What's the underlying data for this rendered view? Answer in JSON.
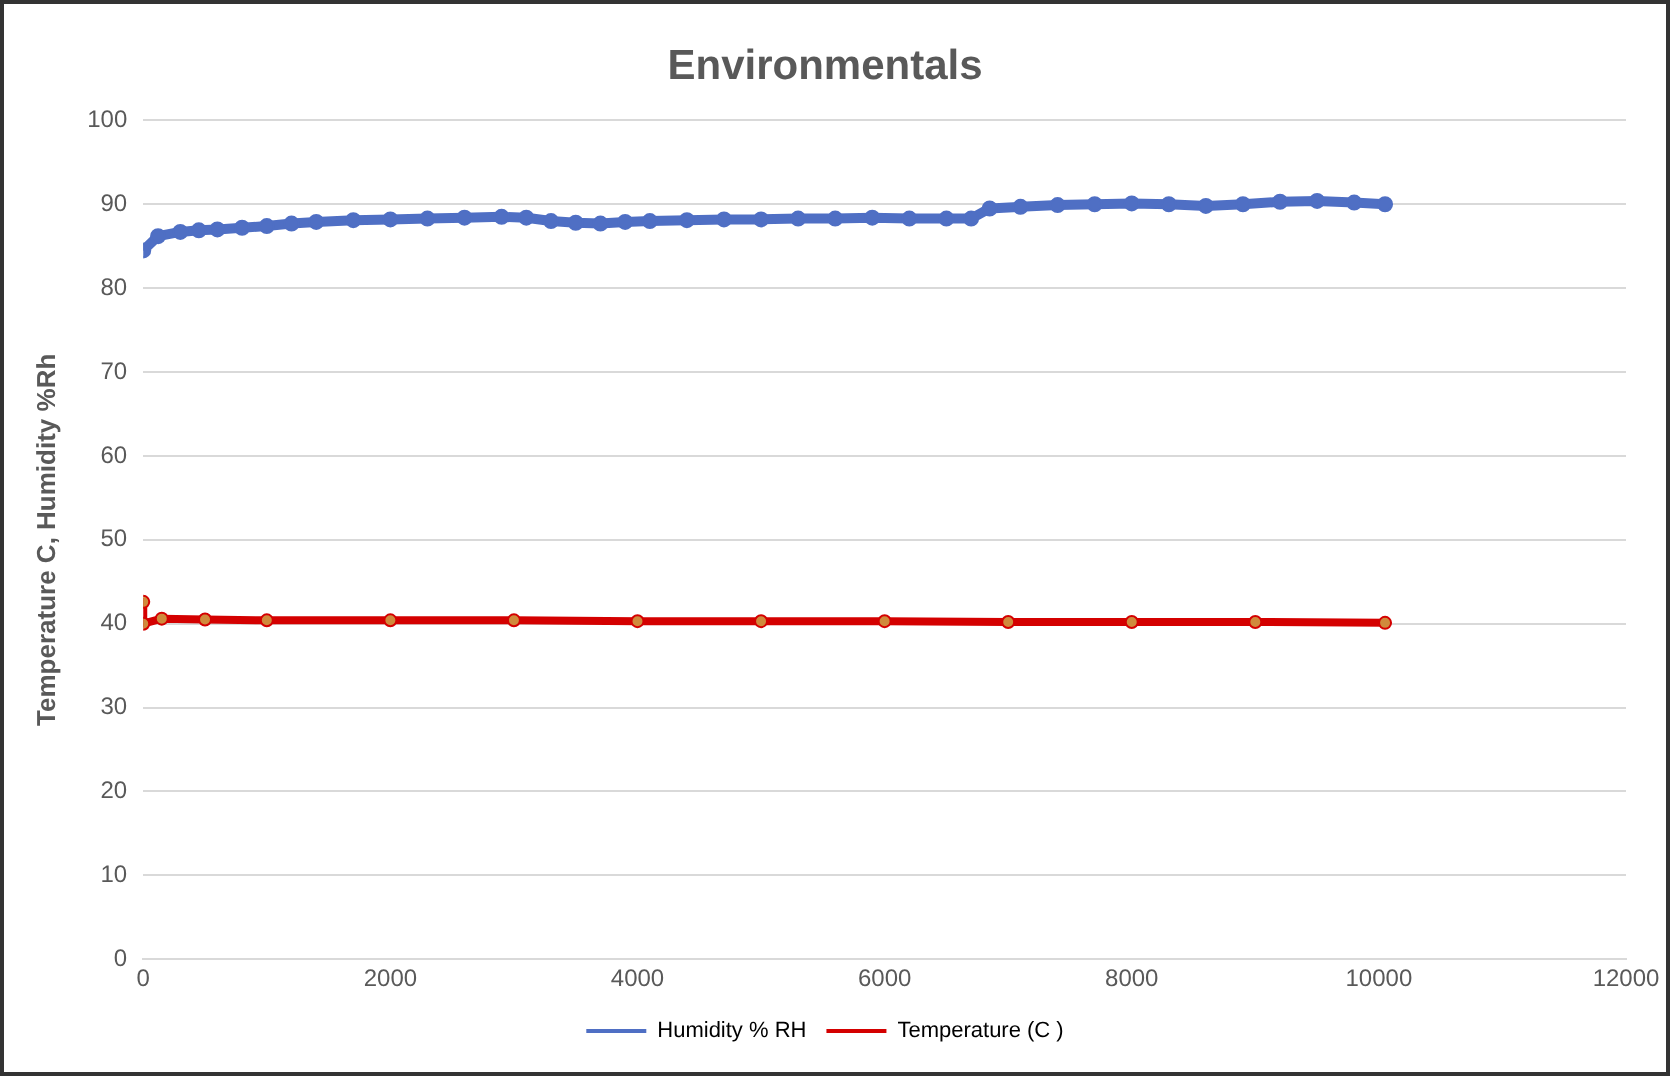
{
  "chart_data": {
    "type": "line",
    "title": "Environmentals",
    "ylabel": "Temperature C, Humidity %Rh",
    "xlim": [
      0,
      12000
    ],
    "xticks": [
      0,
      2000,
      4000,
      6000,
      8000,
      10000,
      12000
    ],
    "ylim": [
      0,
      100
    ],
    "yticks": [
      0,
      10,
      20,
      30,
      40,
      50,
      60,
      70,
      80,
      90,
      100
    ],
    "grid": "y",
    "legend": "bottom",
    "marker": "circle",
    "line_style": "solid",
    "series": [
      {
        "name": "Humidity % RH",
        "color": "#4f6fc4",
        "x": [
          0,
          120,
          300,
          450,
          600,
          800,
          1000,
          1200,
          1400,
          1700,
          2000,
          2300,
          2600,
          2900,
          3100,
          3300,
          3500,
          3700,
          3900,
          4100,
          4400,
          4700,
          5000,
          5300,
          5600,
          5900,
          6200,
          6500,
          6700,
          6850,
          7100,
          7400,
          7700,
          8000,
          8300,
          8600,
          8900,
          9200,
          9500,
          9800,
          10050
        ],
        "values": [
          84.5,
          86.2,
          86.7,
          86.9,
          87.0,
          87.2,
          87.4,
          87.7,
          87.9,
          88.1,
          88.2,
          88.3,
          88.4,
          88.5,
          88.4,
          88.0,
          87.8,
          87.7,
          87.9,
          88.0,
          88.1,
          88.2,
          88.2,
          88.3,
          88.3,
          88.4,
          88.3,
          88.3,
          88.3,
          89.5,
          89.7,
          89.9,
          90.0,
          90.1,
          90.0,
          89.8,
          90.0,
          90.3,
          90.4,
          90.2,
          90.0
        ]
      },
      {
        "name": "Temperature (C )",
        "color": "#d40000",
        "x": [
          0,
          0,
          150,
          500,
          1000,
          2000,
          3000,
          4000,
          5000,
          6000,
          7000,
          8000,
          9000,
          10050
        ],
        "values": [
          42.6,
          40.0,
          40.6,
          40.5,
          40.4,
          40.4,
          40.4,
          40.3,
          40.3,
          40.3,
          40.2,
          40.2,
          40.2,
          40.1
        ]
      }
    ]
  }
}
